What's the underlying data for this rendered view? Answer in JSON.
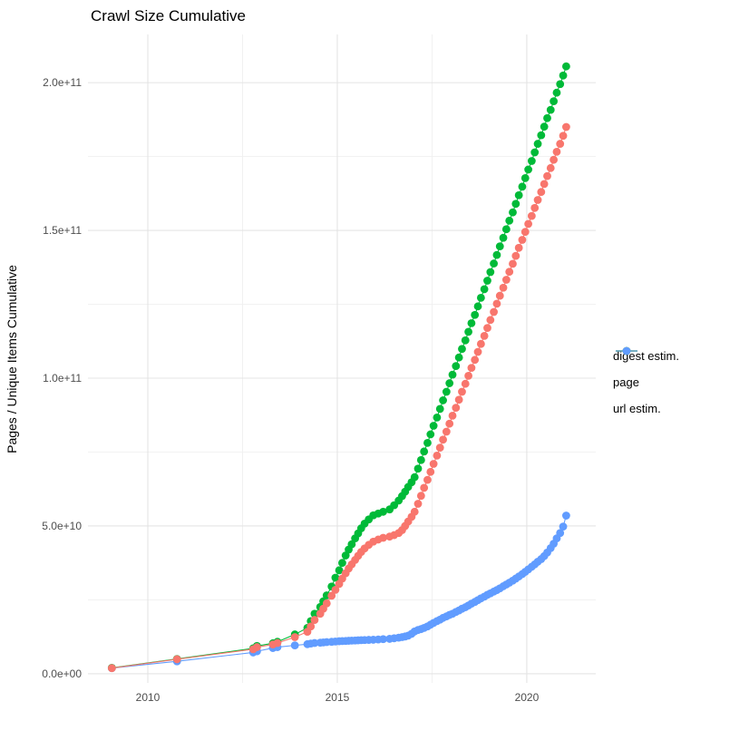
{
  "title": "Crawl Size Cumulative",
  "chart_data": {
    "type": "line",
    "title": "Crawl Size Cumulative",
    "xlabel": "",
    "ylabel": "Pages / Unique Items Cumulative",
    "values_unit": "billions of pages (1e9)",
    "xlim": [
      2008.42,
      2021.82
    ],
    "ylim_billion": [
      -3.1,
      216.3
    ],
    "grid": "on",
    "legend_position": "right",
    "x_ticks": [
      {
        "value": 2010,
        "label": "2010"
      },
      {
        "value": 2015,
        "label": "2015"
      },
      {
        "value": 2020,
        "label": "2020"
      }
    ],
    "x_minor_ticks": [
      2012.5,
      2017.5
    ],
    "y_ticks": [
      {
        "value": 0,
        "label": "0.0e+00"
      },
      {
        "value": 50,
        "label": "5.0e+10"
      },
      {
        "value": 100,
        "label": "1.0e+11"
      },
      {
        "value": 150,
        "label": "1.5e+11"
      },
      {
        "value": 200,
        "label": "2.0e+11"
      }
    ],
    "y_minor_ticks": [
      25,
      75,
      125,
      175
    ],
    "colors": {
      "digest_estim": "#F8766D",
      "page": "#00BA38",
      "url_estim": "#619CFF"
    },
    "series": [
      {
        "name": "digest estim.",
        "color": "#F8766D",
        "points": [
          [
            2009.05,
            1.9
          ],
          [
            2010.77,
            4.9
          ],
          [
            2012.78,
            8.3
          ],
          [
            2012.88,
            9.0
          ],
          [
            2013.3,
            9.9
          ],
          [
            2013.42,
            10.4
          ],
          [
            2013.88,
            12.4
          ],
          [
            2014.21,
            14.2
          ],
          [
            2014.3,
            16.0
          ],
          [
            2014.4,
            18.2
          ],
          [
            2014.55,
            20.3
          ],
          [
            2014.63,
            22.0
          ],
          [
            2014.72,
            23.8
          ],
          [
            2014.85,
            26.4
          ],
          [
            2014.95,
            28.4
          ],
          [
            2015.05,
            30.4
          ],
          [
            2015.13,
            32.2
          ],
          [
            2015.22,
            34.0
          ],
          [
            2015.3,
            35.6
          ],
          [
            2015.38,
            37.0
          ],
          [
            2015.47,
            38.5
          ],
          [
            2015.55,
            39.9
          ],
          [
            2015.63,
            41.2
          ],
          [
            2015.72,
            42.4
          ],
          [
            2015.83,
            43.6
          ],
          [
            2015.95,
            44.7
          ],
          [
            2016.08,
            45.4
          ],
          [
            2016.21,
            46.0
          ],
          [
            2016.38,
            46.4
          ],
          [
            2016.5,
            46.9
          ],
          [
            2016.62,
            47.6
          ],
          [
            2016.71,
            48.6
          ],
          [
            2016.79,
            50.0
          ],
          [
            2016.87,
            51.5
          ],
          [
            2016.96,
            53.1
          ],
          [
            2017.04,
            54.8
          ],
          [
            2017.13,
            57.5
          ],
          [
            2017.21,
            60.2
          ],
          [
            2017.29,
            62.9
          ],
          [
            2017.38,
            65.6
          ],
          [
            2017.46,
            68.3
          ],
          [
            2017.54,
            71.0
          ],
          [
            2017.63,
            73.8
          ],
          [
            2017.71,
            76.5
          ],
          [
            2017.79,
            79.2
          ],
          [
            2017.88,
            81.9
          ],
          [
            2017.96,
            84.6
          ],
          [
            2018.04,
            87.3
          ],
          [
            2018.13,
            90.0
          ],
          [
            2018.21,
            92.7
          ],
          [
            2018.29,
            95.4
          ],
          [
            2018.38,
            98.1
          ],
          [
            2018.46,
            100.8
          ],
          [
            2018.54,
            103.5
          ],
          [
            2018.63,
            106.2
          ],
          [
            2018.71,
            108.9
          ],
          [
            2018.79,
            111.6
          ],
          [
            2018.88,
            114.3
          ],
          [
            2018.96,
            117.0
          ],
          [
            2019.04,
            119.7
          ],
          [
            2019.13,
            122.4
          ],
          [
            2019.21,
            125.2
          ],
          [
            2019.29,
            127.9
          ],
          [
            2019.38,
            130.6
          ],
          [
            2019.46,
            133.3
          ],
          [
            2019.54,
            136.0
          ],
          [
            2019.63,
            138.7
          ],
          [
            2019.71,
            141.4
          ],
          [
            2019.79,
            144.1
          ],
          [
            2019.88,
            146.8
          ],
          [
            2019.96,
            149.5
          ],
          [
            2020.04,
            152.2
          ],
          [
            2020.13,
            154.9
          ],
          [
            2020.21,
            157.6
          ],
          [
            2020.29,
            160.3
          ],
          [
            2020.38,
            163.0
          ],
          [
            2020.46,
            165.7
          ],
          [
            2020.54,
            168.4
          ],
          [
            2020.63,
            171.1
          ],
          [
            2020.71,
            173.9
          ],
          [
            2020.79,
            176.6
          ],
          [
            2020.88,
            179.3
          ],
          [
            2020.96,
            182.0
          ],
          [
            2021.04,
            185.0
          ]
        ]
      },
      {
        "name": "page",
        "color": "#00BA38",
        "points": [
          [
            2009.05,
            2.0
          ],
          [
            2010.77,
            5.0
          ],
          [
            2012.78,
            8.6
          ],
          [
            2012.88,
            9.4
          ],
          [
            2013.3,
            10.3
          ],
          [
            2013.42,
            10.8
          ],
          [
            2013.88,
            13.3
          ],
          [
            2014.21,
            15.5
          ],
          [
            2014.3,
            17.8
          ],
          [
            2014.4,
            20.3
          ],
          [
            2014.55,
            22.6
          ],
          [
            2014.63,
            24.5
          ],
          [
            2014.72,
            26.5
          ],
          [
            2014.85,
            29.5
          ],
          [
            2014.95,
            32.5
          ],
          [
            2015.05,
            35.0
          ],
          [
            2015.13,
            37.5
          ],
          [
            2015.22,
            40.0
          ],
          [
            2015.3,
            42.0
          ],
          [
            2015.38,
            43.8
          ],
          [
            2015.47,
            45.8
          ],
          [
            2015.55,
            47.5
          ],
          [
            2015.63,
            49.2
          ],
          [
            2015.72,
            50.8
          ],
          [
            2015.83,
            52.2
          ],
          [
            2015.95,
            53.6
          ],
          [
            2016.08,
            54.2
          ],
          [
            2016.21,
            54.8
          ],
          [
            2016.38,
            55.6
          ],
          [
            2016.5,
            57.0
          ],
          [
            2016.62,
            58.6
          ],
          [
            2016.71,
            60.1
          ],
          [
            2016.79,
            61.6
          ],
          [
            2016.87,
            63.2
          ],
          [
            2016.96,
            64.8
          ],
          [
            2017.04,
            66.5
          ],
          [
            2017.13,
            69.4
          ],
          [
            2017.21,
            72.3
          ],
          [
            2017.29,
            75.2
          ],
          [
            2017.38,
            78.1
          ],
          [
            2017.46,
            81.0
          ],
          [
            2017.54,
            83.9
          ],
          [
            2017.63,
            86.7
          ],
          [
            2017.71,
            89.6
          ],
          [
            2017.79,
            92.5
          ],
          [
            2017.88,
            95.4
          ],
          [
            2017.96,
            98.3
          ],
          [
            2018.04,
            101.2
          ],
          [
            2018.13,
            104.1
          ],
          [
            2018.21,
            107.0
          ],
          [
            2018.29,
            109.9
          ],
          [
            2018.38,
            112.8
          ],
          [
            2018.46,
            115.7
          ],
          [
            2018.54,
            118.6
          ],
          [
            2018.63,
            121.4
          ],
          [
            2018.71,
            124.3
          ],
          [
            2018.79,
            127.2
          ],
          [
            2018.88,
            130.1
          ],
          [
            2018.96,
            133.0
          ],
          [
            2019.04,
            135.9
          ],
          [
            2019.13,
            138.8
          ],
          [
            2019.21,
            141.7
          ],
          [
            2019.29,
            144.6
          ],
          [
            2019.38,
            147.5
          ],
          [
            2019.46,
            150.4
          ],
          [
            2019.54,
            153.3
          ],
          [
            2019.63,
            156.1
          ],
          [
            2019.71,
            159.0
          ],
          [
            2019.79,
            161.9
          ],
          [
            2019.88,
            164.8
          ],
          [
            2019.96,
            167.7
          ],
          [
            2020.04,
            170.6
          ],
          [
            2020.13,
            173.5
          ],
          [
            2020.21,
            176.4
          ],
          [
            2020.29,
            179.3
          ],
          [
            2020.38,
            182.2
          ],
          [
            2020.46,
            185.1
          ],
          [
            2020.54,
            188.0
          ],
          [
            2020.63,
            190.8
          ],
          [
            2020.71,
            193.7
          ],
          [
            2020.79,
            196.6
          ],
          [
            2020.88,
            199.5
          ],
          [
            2020.96,
            202.4
          ],
          [
            2021.04,
            205.5
          ]
        ]
      },
      {
        "name": "url estim.",
        "color": "#619CFF",
        "points": [
          [
            2009.05,
            1.9
          ],
          [
            2010.77,
            4.2
          ],
          [
            2012.78,
            7.2
          ],
          [
            2012.88,
            7.6
          ],
          [
            2013.3,
            8.7
          ],
          [
            2013.42,
            9.0
          ],
          [
            2013.88,
            9.6
          ],
          [
            2014.21,
            10.0
          ],
          [
            2014.3,
            10.2
          ],
          [
            2014.4,
            10.4
          ],
          [
            2014.55,
            10.5
          ],
          [
            2014.63,
            10.6
          ],
          [
            2014.72,
            10.7
          ],
          [
            2014.85,
            10.8
          ],
          [
            2014.95,
            10.9
          ],
          [
            2015.05,
            11.0
          ],
          [
            2015.13,
            11.05
          ],
          [
            2015.22,
            11.1
          ],
          [
            2015.3,
            11.15
          ],
          [
            2015.38,
            11.2
          ],
          [
            2015.47,
            11.25
          ],
          [
            2015.55,
            11.3
          ],
          [
            2015.63,
            11.35
          ],
          [
            2015.72,
            11.4
          ],
          [
            2015.83,
            11.45
          ],
          [
            2015.95,
            11.5
          ],
          [
            2016.08,
            11.6
          ],
          [
            2016.21,
            11.7
          ],
          [
            2016.38,
            11.8
          ],
          [
            2016.5,
            12.0
          ],
          [
            2016.62,
            12.2
          ],
          [
            2016.71,
            12.4
          ],
          [
            2016.79,
            12.6
          ],
          [
            2016.87,
            12.9
          ],
          [
            2016.96,
            13.5
          ],
          [
            2017.04,
            14.3
          ],
          [
            2017.13,
            14.8
          ],
          [
            2017.21,
            15.1
          ],
          [
            2017.29,
            15.5
          ],
          [
            2017.38,
            16.0
          ],
          [
            2017.46,
            16.6
          ],
          [
            2017.54,
            17.2
          ],
          [
            2017.63,
            17.8
          ],
          [
            2017.71,
            18.3
          ],
          [
            2017.79,
            18.9
          ],
          [
            2017.88,
            19.4
          ],
          [
            2017.96,
            19.9
          ],
          [
            2018.04,
            20.3
          ],
          [
            2018.13,
            20.9
          ],
          [
            2018.21,
            21.4
          ],
          [
            2018.29,
            22.0
          ],
          [
            2018.38,
            22.5
          ],
          [
            2018.46,
            23.1
          ],
          [
            2018.54,
            23.7
          ],
          [
            2018.63,
            24.3
          ],
          [
            2018.71,
            24.9
          ],
          [
            2018.79,
            25.5
          ],
          [
            2018.88,
            26.1
          ],
          [
            2018.96,
            26.7
          ],
          [
            2019.04,
            27.2
          ],
          [
            2019.13,
            27.8
          ],
          [
            2019.21,
            28.3
          ],
          [
            2019.29,
            28.9
          ],
          [
            2019.38,
            29.6
          ],
          [
            2019.46,
            30.2
          ],
          [
            2019.54,
            30.8
          ],
          [
            2019.63,
            31.5
          ],
          [
            2019.71,
            32.2
          ],
          [
            2019.79,
            32.9
          ],
          [
            2019.88,
            33.7
          ],
          [
            2019.96,
            34.5
          ],
          [
            2020.04,
            35.3
          ],
          [
            2020.13,
            36.2
          ],
          [
            2020.21,
            37.0
          ],
          [
            2020.29,
            37.9
          ],
          [
            2020.38,
            38.8
          ],
          [
            2020.46,
            39.8
          ],
          [
            2020.54,
            41.0
          ],
          [
            2020.63,
            42.5
          ],
          [
            2020.71,
            44.0
          ],
          [
            2020.79,
            45.8
          ],
          [
            2020.88,
            47.6
          ],
          [
            2020.96,
            49.8
          ],
          [
            2021.04,
            53.5
          ]
        ]
      }
    ]
  },
  "legend": {
    "items": [
      {
        "label": "digest estim.",
        "color": "#F8766D"
      },
      {
        "label": "page",
        "color": "#00BA38"
      },
      {
        "label": "url estim.",
        "color": "#619CFF"
      }
    ]
  },
  "style": {
    "grid_major_color": "#e4e4e4",
    "grid_minor_color": "#f0f0f0",
    "tick_text_color": "#4d4d4d",
    "background": "#ffffff"
  }
}
